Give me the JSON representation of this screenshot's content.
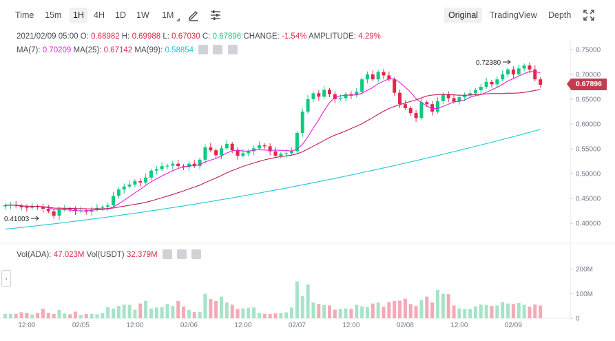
{
  "toolbar": {
    "intervals": [
      "Time",
      "15m",
      "1H",
      "4H",
      "1D",
      "1W",
      "1M"
    ],
    "active_interval": "1H",
    "views": [
      "Original",
      "TradingView",
      "Depth"
    ],
    "active_view": "Original",
    "icons": [
      "pencil-icon",
      "sliders-icon",
      "fullscreen-icon"
    ]
  },
  "ohlc": {
    "date": "2021/02/09 05:00",
    "o_label": "O:",
    "o": "0.68982",
    "h_label": "H:",
    "h": "0.69988",
    "l_label": "L:",
    "l": "0.67030",
    "c_label": "C:",
    "c": "0.67896",
    "change_label": "CHANGE:",
    "change": "-1.54%",
    "amplitude_label": "AMPLITUDE:",
    "amplitude": "4.29%"
  },
  "ma": {
    "ma7_label": "MA(7):",
    "ma7": "0.70209",
    "ma25_label": "MA(25):",
    "ma25": "0.67142",
    "ma99_label": "MA(99):",
    "ma99": "0.58854"
  },
  "volume": {
    "vol_ada_label": "Vol(ADA):",
    "vol_ada": "47.023M",
    "vol_usdt_label": "Vol(USDT)",
    "vol_usdt": "32.379M"
  },
  "current_price": "0.67896",
  "annotations": {
    "high": "0.72380",
    "low": "0.41003"
  },
  "colors": {
    "up": "#0ecb81",
    "down": "#e0294a",
    "vol_up": "#a7e3c8",
    "vol_down": "#f3aab6",
    "ma7": "#e41ede",
    "ma25": "#c2185b",
    "ma99": "#1fc7d4",
    "price_tag": "#c23b4e"
  },
  "chart_data": {
    "type": "candlestick",
    "price_axis": {
      "ticks": [
        "0.75000",
        "0.70000",
        "0.65000",
        "0.60000",
        "0.55000",
        "0.50000",
        "0.45000",
        "0.40000"
      ],
      "ylim": [
        0.385,
        0.76
      ]
    },
    "volume_axis": {
      "ticks": [
        "200M",
        "100M",
        "0"
      ],
      "ylim": [
        0,
        230
      ]
    },
    "x_ticks": [
      {
        "label": "12:00",
        "index": 4
      },
      {
        "label": "02/05",
        "index": 14
      },
      {
        "label": "12:00",
        "index": 24
      },
      {
        "label": "02/06",
        "index": 34
      },
      {
        "label": "12:00",
        "index": 44
      },
      {
        "label": "02/07",
        "index": 54
      },
      {
        "label": "12:00",
        "index": 64
      },
      {
        "label": "02/08",
        "index": 74
      },
      {
        "label": "12:00",
        "index": 84
      },
      {
        "label": "02/09",
        "index": 94
      }
    ],
    "closes": [
      0.436,
      0.437,
      0.435,
      0.432,
      0.431,
      0.434,
      0.433,
      0.429,
      0.424,
      0.415,
      0.427,
      0.429,
      0.428,
      0.425,
      0.426,
      0.423,
      0.427,
      0.431,
      0.433,
      0.436,
      0.455,
      0.468,
      0.474,
      0.478,
      0.485,
      0.482,
      0.492,
      0.506,
      0.509,
      0.515,
      0.516,
      0.52,
      0.515,
      0.513,
      0.52,
      0.515,
      0.528,
      0.553,
      0.547,
      0.537,
      0.551,
      0.56,
      0.547,
      0.536,
      0.541,
      0.545,
      0.551,
      0.557,
      0.555,
      0.545,
      0.536,
      0.54,
      0.541,
      0.545,
      0.582,
      0.625,
      0.65,
      0.662,
      0.655,
      0.669,
      0.66,
      0.65,
      0.652,
      0.66,
      0.658,
      0.665,
      0.69,
      0.7,
      0.69,
      0.705,
      0.698,
      0.69,
      0.663,
      0.64,
      0.632,
      0.622,
      0.612,
      0.644,
      0.64,
      0.625,
      0.646,
      0.66,
      0.652,
      0.645,
      0.654,
      0.658,
      0.662,
      0.668,
      0.675,
      0.685,
      0.68,
      0.69,
      0.7,
      0.71,
      0.7,
      0.712,
      0.718,
      0.71,
      0.69,
      0.679
    ],
    "volumes": [
      18,
      18,
      18,
      24,
      22,
      15,
      22,
      38,
      22,
      17,
      34,
      20,
      16,
      27,
      14,
      17,
      18,
      16,
      22,
      45,
      40,
      50,
      55,
      55,
      35,
      60,
      70,
      40,
      44,
      45,
      58,
      50,
      70,
      48,
      34,
      25,
      26,
      100,
      78,
      70,
      88,
      64,
      55,
      38,
      40,
      43,
      44,
      22,
      18,
      17,
      20,
      22,
      24,
      44,
      150,
      90,
      138,
      65,
      58,
      54,
      52,
      35,
      38,
      40,
      38,
      55,
      48,
      45,
      60,
      64,
      46,
      66,
      70,
      72,
      80,
      58,
      50,
      75,
      88,
      65,
      115,
      100,
      98,
      52,
      40,
      38,
      38,
      48,
      56,
      54,
      50,
      52,
      66,
      60,
      58,
      62,
      55,
      47,
      56,
      52
    ]
  }
}
